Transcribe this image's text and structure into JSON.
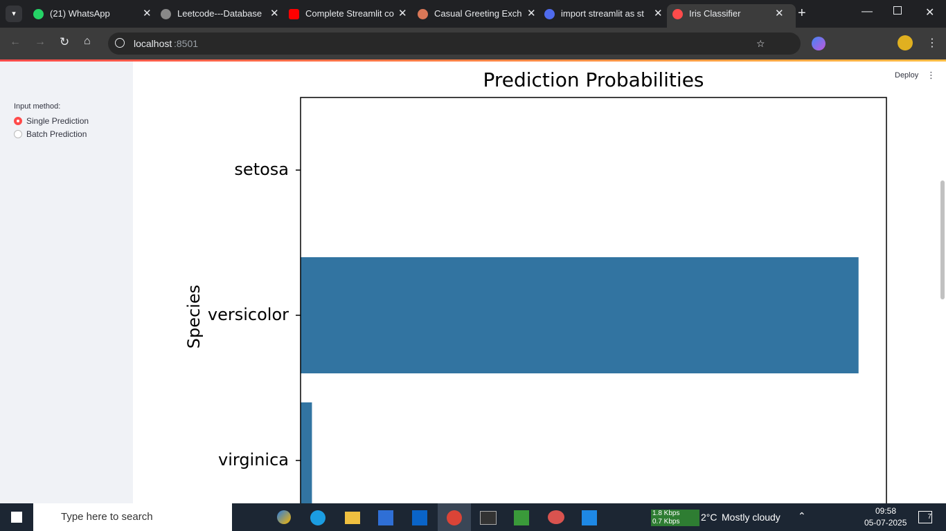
{
  "browser": {
    "tabs": [
      "(21) WhatsApp",
      "Leetcode---Database",
      "Complete Streamlit co",
      "Casual Greeting Exch",
      "import streamlit as st",
      "Iris Classifier"
    ],
    "url_host": "localhost",
    "url_port": ":8501"
  },
  "toolbar": {
    "deploy": "Deploy"
  },
  "sidebar": {
    "label": "Input method:",
    "options": [
      "Single Prediction",
      "Batch Prediction"
    ]
  },
  "chart_data": {
    "type": "bar",
    "orientation": "horizontal",
    "title": "Prediction Probabilities",
    "y_label": "Species",
    "categories": [
      "setosa",
      "versicolor",
      "virginica"
    ],
    "values": [
      0,
      0.98,
      0.02
    ],
    "color": "#3274a1",
    "xlim": [
      0,
      1.029
    ]
  },
  "taskbar": {
    "search": "Type here to search",
    "net_up": "1.8 Kbps",
    "net_down": "0.7 Kbps",
    "temperature": "2°C",
    "weather": "Mostly cloudy",
    "time": "09:58",
    "date": "05-07-2025",
    "notifications": "7"
  }
}
